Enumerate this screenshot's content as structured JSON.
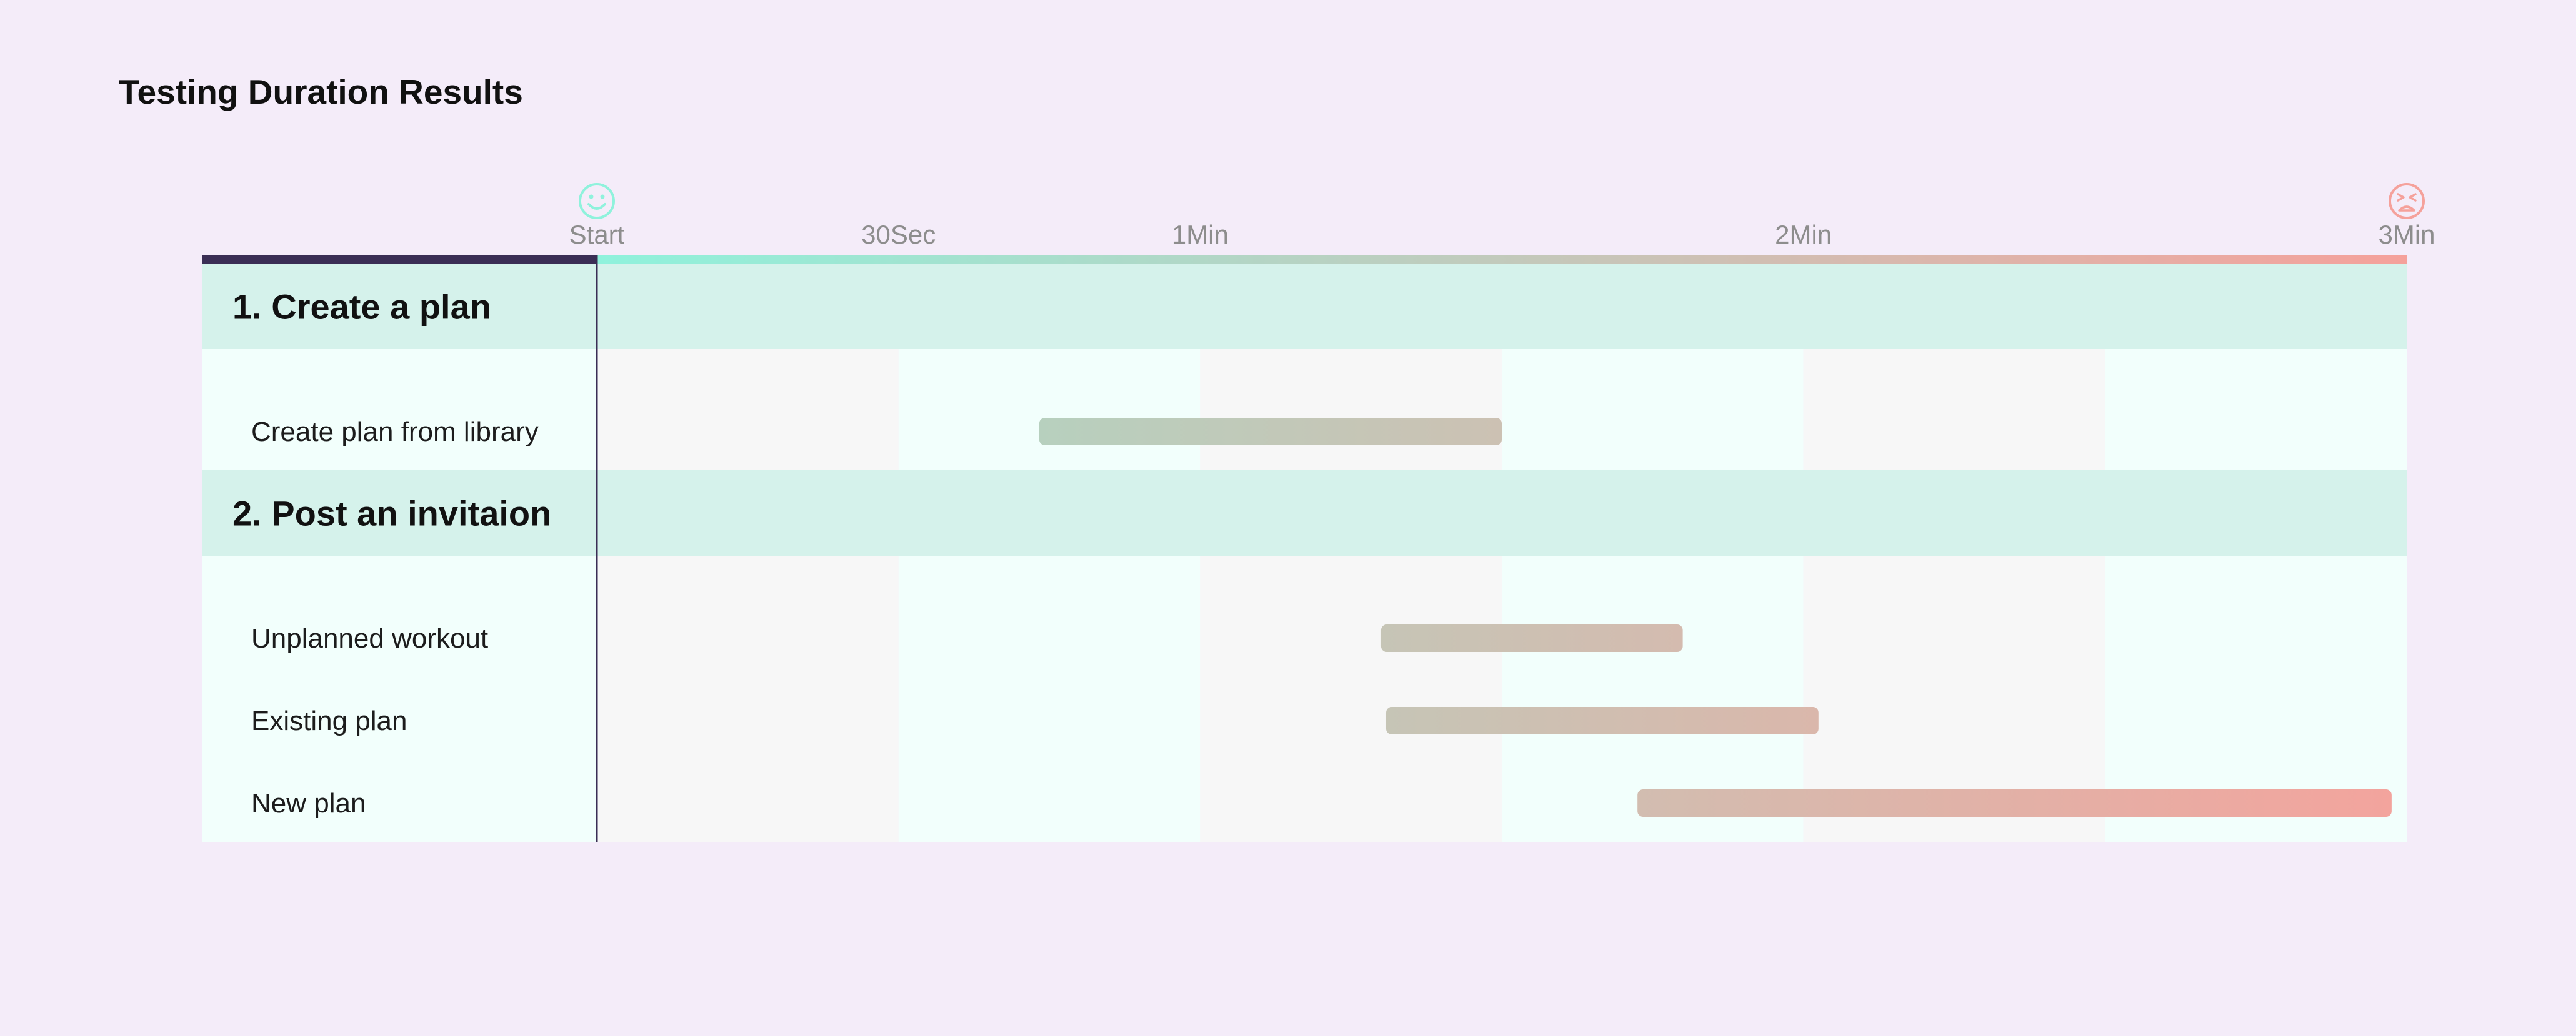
{
  "chart_data": {
    "type": "gantt",
    "title": "Testing Duration Results",
    "x_unit": "seconds",
    "xlim": [
      0,
      180
    ],
    "ticks": [
      {
        "value": 0,
        "label": "Start"
      },
      {
        "value": 30,
        "label": "30Sec"
      },
      {
        "value": 60,
        "label": "1Min"
      },
      {
        "value": 120,
        "label": "2Min"
      },
      {
        "value": 180,
        "label": "3Min"
      }
    ],
    "start_icon": "smiley-face-icon",
    "end_icon": "frowning-face-icon",
    "colors": {
      "start": "#8ff2dc",
      "end": "#f5a19b",
      "axis_dark": "#3a2e55",
      "group_row": "#d5f2eb",
      "task_row": "#f2fffc",
      "stripe_light": "#f7f7f7",
      "stripe_mint": "#f2fffc",
      "bar_start": "#a3dfc9",
      "bar_end": "#f4a39d"
    },
    "groups": [
      {
        "label": "1. Create a plan",
        "tasks": [
          {
            "label": "Create plan from library",
            "start": 44,
            "end": 90
          }
        ]
      },
      {
        "label": "2. Post an invitaion",
        "tasks": [
          {
            "label": "Unplanned workout",
            "start": 78,
            "end": 108
          },
          {
            "label": "Existing plan",
            "start": 78.5,
            "end": 121.5
          },
          {
            "label": "New plan",
            "start": 103.5,
            "end": 178.5
          }
        ]
      }
    ]
  }
}
